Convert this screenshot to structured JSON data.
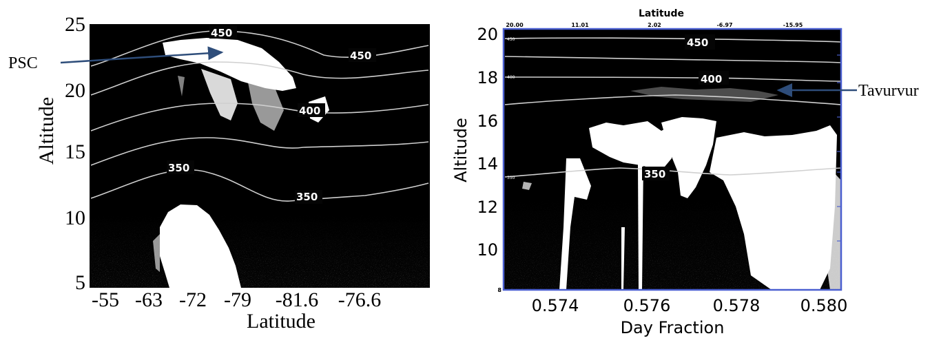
{
  "chart_data": [
    {
      "type": "heatmap",
      "title": "",
      "xlabel": "Latitude",
      "ylabel": "Altitude",
      "x_ticks": [
        "-55",
        "-63",
        "-72",
        "-79",
        "-81.6",
        "-76.6"
      ],
      "y_ticks": [
        "5",
        "10",
        "15",
        "20",
        "25"
      ],
      "ylim": [
        5,
        25
      ],
      "contour_label_text": [
        "450",
        "450",
        "400",
        "350",
        "350"
      ],
      "annotation": "PSC",
      "colors": {
        "background": "#050505",
        "cloud": "#ffffff",
        "contour": "#c8c8c8",
        "arrow": "#2e4d7a"
      }
    },
    {
      "type": "heatmap",
      "title": "",
      "xlabel": "Day Fraction",
      "ylabel": "Altitude",
      "top_axis_label": "Latitude",
      "x_ticks": [
        "0.574",
        "0.576",
        "0.578",
        "0.580"
      ],
      "top_ticks": [
        "20.00",
        "11.01",
        "2.02",
        "-6.97",
        "-15.95"
      ],
      "y_ticks": [
        "10",
        "12",
        "14",
        "16",
        "18",
        "20"
      ],
      "y_min_label": "8",
      "ylim": [
        8,
        20
      ],
      "xlim": [
        0.5728,
        0.5802
      ],
      "contour_label_text": [
        "450",
        "400",
        "350"
      ],
      "small_contour_labels": [
        "450",
        "400",
        "350"
      ],
      "annotation": "Tavurvur",
      "colors": {
        "background": "#050505",
        "cloud": "#ffffff",
        "contour": "#c8c8c8",
        "frame": "#4a5fd0",
        "arrow": "#2e4d7a"
      }
    }
  ]
}
